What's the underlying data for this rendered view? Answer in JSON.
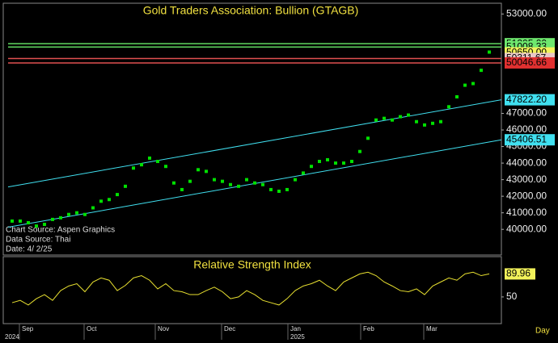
{
  "chart_data": [
    {
      "type": "scatter",
      "title": "Gold Traders Association: Bullion (GTAGB)",
      "notes": [
        "Chart Source: Aspen Graphics",
        "Data Source: Thai",
        "Date: 4/ 2/25"
      ],
      "color": "#00e000",
      "values": [
        40500,
        40500,
        40400,
        40200,
        40300,
        40600,
        40700,
        40900,
        41000,
        40900,
        41300,
        41700,
        41800,
        42100,
        42600,
        43700,
        43900,
        44300,
        44100,
        43800,
        42800,
        42400,
        42900,
        43600,
        43500,
        43000,
        42900,
        42700,
        42600,
        43000,
        42800,
        42700,
        42400,
        42300,
        42400,
        43000,
        43400,
        43800,
        44100,
        44200,
        44000,
        44000,
        44100,
        44700,
        45500,
        46600,
        46700,
        46600,
        46800,
        46900,
        46500,
        46300,
        46400,
        46500,
        47400,
        48000,
        48700,
        48800,
        49600,
        50700
      ],
      "ylim": [
        38500,
        53600
      ],
      "yticks": [
        {
          "value": 40000,
          "label": "40000.00"
        },
        {
          "value": 41000,
          "label": "41000.00"
        },
        {
          "value": 42000,
          "label": "42000.00"
        },
        {
          "value": 43000,
          "label": "43000.00"
        },
        {
          "value": 44000,
          "label": "44000.00"
        },
        {
          "value": 45000,
          "label": "45000.00"
        },
        {
          "value": 46000,
          "label": "46000.00"
        },
        {
          "value": 47000,
          "label": "47000.00"
        },
        {
          "value": 53000,
          "label": "53000.00"
        }
      ],
      "levels": [
        {
          "value": 51205,
          "label": "51205.00",
          "color": "#6ee86e",
          "line_color": "#5fd85f"
        },
        {
          "value": 51008.33,
          "label": "51008.33",
          "color": "#6ee86e",
          "line_color": "#5fd85f"
        },
        {
          "value": 50650,
          "label": "50650.00",
          "color": "#f2f25a",
          "line_color": null
        },
        {
          "value": 50311.67,
          "label": "50311.67",
          "color": "#e8c8c8",
          "line_color": "#e05050"
        },
        {
          "value": 50046.66,
          "label": "50046.66",
          "color": "#e03030",
          "line_color": "#e05050"
        }
      ],
      "channel": [
        {
          "start": 42560,
          "end": 47822.2,
          "label": "47822.20"
        },
        {
          "start": 40130,
          "end": 45406.51,
          "label": "45406.51"
        }
      ],
      "channel_color": "#40e0f0"
    },
    {
      "type": "line",
      "title": "Relative Strength Index",
      "color": "#e8e030",
      "values": [
        40,
        44,
        36,
        47,
        54,
        44,
        61,
        69,
        73,
        59,
        76,
        83,
        79,
        61,
        70,
        83,
        87,
        79,
        64,
        73,
        61,
        59,
        54,
        54,
        61,
        67,
        59,
        47,
        50,
        61,
        54,
        44,
        40,
        36,
        47,
        61,
        69,
        73,
        79,
        69,
        61,
        76,
        83,
        90,
        93,
        87,
        76,
        69,
        61,
        59,
        64,
        54,
        69,
        76,
        83,
        79,
        90,
        93,
        87,
        89.96
      ],
      "ylim": [
        5,
        120
      ],
      "yticks": [
        50
      ],
      "months": [
        "Sep",
        "Oct",
        "Nov",
        "Dec",
        "Jan",
        "Feb",
        "Mar"
      ],
      "years": [
        "2024",
        "2025"
      ],
      "x_unit": "Day"
    }
  ]
}
